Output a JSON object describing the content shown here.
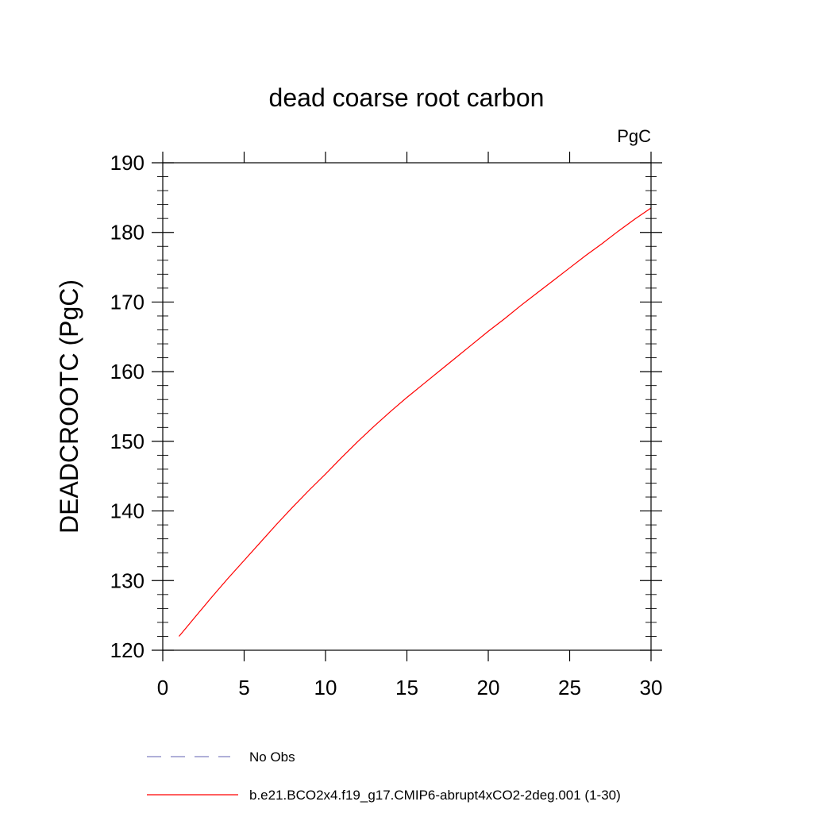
{
  "chart_data": {
    "type": "line",
    "title": "dead coarse root carbon",
    "units_label": "PgC",
    "ylabel": "DEADCROOTC  (PgC)",
    "xlabel": "",
    "xlim": [
      0,
      30
    ],
    "ylim": [
      120,
      190
    ],
    "xticks": [
      0,
      5,
      10,
      15,
      20,
      25,
      30
    ],
    "yticks": [
      120,
      130,
      140,
      150,
      160,
      170,
      180,
      190
    ],
    "grid": false,
    "legend_position": "bottom",
    "legend": [
      {
        "label": "No Obs",
        "color": "#8080c0",
        "style": "dashed"
      },
      {
        "label": "b.e21.BCO2x4.f19_g17.CMIP6-abrupt4xCO2-2deg.001 (1-30)",
        "color": "#ff0000",
        "style": "solid"
      }
    ],
    "series": [
      {
        "name": "b.e21.BCO2x4.f19_g17.CMIP6-abrupt4xCO2-2deg.001 (1-30)",
        "color": "#ff0000",
        "x": [
          1,
          2,
          3,
          4,
          5,
          6,
          7,
          8,
          9,
          10,
          11,
          12,
          13,
          14,
          15,
          16,
          17,
          18,
          19,
          20,
          21,
          22,
          23,
          24,
          25,
          26,
          27,
          28,
          29,
          30
        ],
        "y": [
          122.0,
          124.8,
          127.6,
          130.3,
          132.9,
          135.5,
          138.1,
          140.6,
          143.0,
          145.3,
          147.7,
          150.0,
          152.2,
          154.3,
          156.3,
          158.2,
          160.1,
          162.0,
          163.9,
          165.8,
          167.6,
          169.5,
          171.3,
          173.1,
          174.9,
          176.7,
          178.4,
          180.2,
          181.9,
          183.5
        ]
      }
    ]
  }
}
